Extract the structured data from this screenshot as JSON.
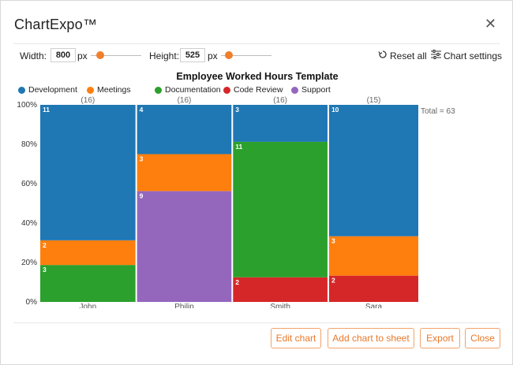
{
  "app": {
    "title": "ChartExpo™"
  },
  "toolbar": {
    "width_label": "Width:",
    "width_value": "800",
    "height_label": "Height:",
    "height_value": "525",
    "unit": "px",
    "reset_label": "Reset all",
    "settings_label": "Chart settings"
  },
  "buttons": {
    "edit": "Edit chart",
    "add": "Add chart to sheet",
    "export": "Export",
    "close": "Close"
  },
  "colors": {
    "accent": "#f07f2b",
    "Development": "#1f77b4",
    "Meetings": "#ff7f0e",
    "Documentation": "#2ca02c",
    "Code Review": "#d62728",
    "Support": "#9467bd"
  },
  "chart_data": {
    "type": "bar",
    "subtype": "marimekko",
    "title": "Employee Worked Hours Template",
    "legend": [
      "Development",
      "Meetings",
      "Documentation",
      "Code Review",
      "Support"
    ],
    "legend_position": "top-left",
    "y_ticks": [
      "0%",
      "20%",
      "40%",
      "60%",
      "80%",
      "100%"
    ],
    "ylim": [
      0,
      100
    ],
    "total_label": "Total = 63",
    "columns": [
      {
        "name": "John",
        "total": 16,
        "total_label": "(16)",
        "segments": [
          {
            "series": "Documentation",
            "value": 3
          },
          {
            "series": "Meetings",
            "value": 2
          },
          {
            "series": "Development",
            "value": 11
          }
        ]
      },
      {
        "name": "Philip",
        "total": 16,
        "total_label": "(16)",
        "segments": [
          {
            "series": "Support",
            "value": 9
          },
          {
            "series": "Meetings",
            "value": 3
          },
          {
            "series": "Development",
            "value": 4
          }
        ]
      },
      {
        "name": "Smith",
        "total": 16,
        "total_label": "(16)",
        "segments": [
          {
            "series": "Code Review",
            "value": 2
          },
          {
            "series": "Documentation",
            "value": 11
          },
          {
            "series": "Development",
            "value": 3
          }
        ]
      },
      {
        "name": "Sara",
        "total": 15,
        "total_label": "(15)",
        "segments": [
          {
            "series": "Code Review",
            "value": 2
          },
          {
            "series": "Meetings",
            "value": 3
          },
          {
            "series": "Development",
            "value": 10
          }
        ]
      }
    ]
  }
}
